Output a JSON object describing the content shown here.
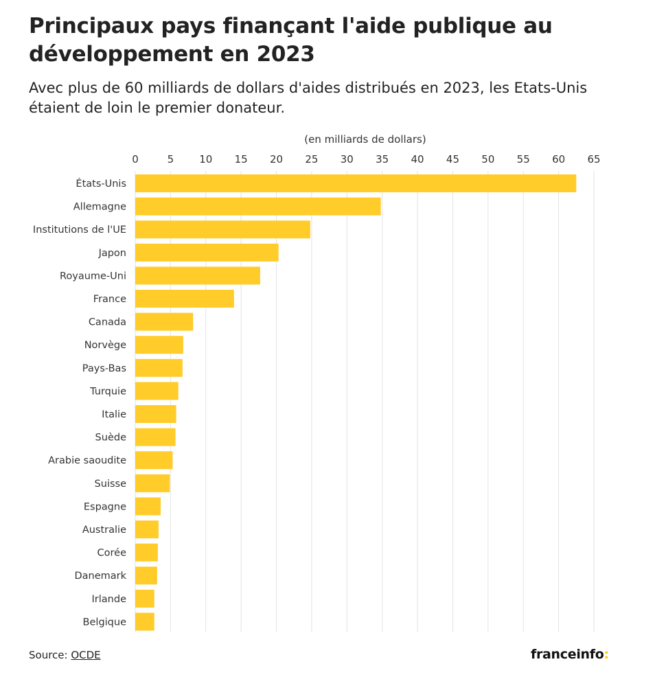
{
  "title": "Principaux pays finançant l'aide publique au développement en 2023",
  "subtitle": "Avec plus de 60 milliards de dollars d'aides distribués en 2023, les Etats-Unis étaient de loin le premier donateur.",
  "source": {
    "label": "Source: ",
    "link_text": "OCDE"
  },
  "brand": {
    "name": "franceinfo",
    "suffix": ":",
    "accent_color": "#ffcb05"
  },
  "chart_data": {
    "type": "bar",
    "orientation": "horizontal",
    "xlabel": "(en milliards de dollars)",
    "ylabel": "",
    "xlim": [
      0,
      65
    ],
    "xticks": [
      0,
      5,
      10,
      15,
      20,
      25,
      30,
      35,
      40,
      45,
      50,
      55,
      60,
      65
    ],
    "grid": true,
    "legend": "none",
    "bar_color": "#ffcc29",
    "categories": [
      "États-Unis",
      "Allemagne",
      "Institutions de l'UE",
      "Japon",
      "Royaume-Uni",
      "France",
      "Canada",
      "Norvège",
      "Pays-Bas",
      "Turquie",
      "Italie",
      "Suède",
      "Arabie saoudite",
      "Suisse",
      "Espagne",
      "Australie",
      "Corée",
      "Danemark",
      "Irlande",
      "Belgique"
    ],
    "values": [
      62.5,
      34.8,
      24.8,
      20.3,
      17.7,
      14.0,
      8.2,
      6.8,
      6.7,
      6.1,
      5.8,
      5.7,
      5.3,
      4.9,
      3.6,
      3.3,
      3.2,
      3.1,
      2.7,
      2.7
    ]
  }
}
